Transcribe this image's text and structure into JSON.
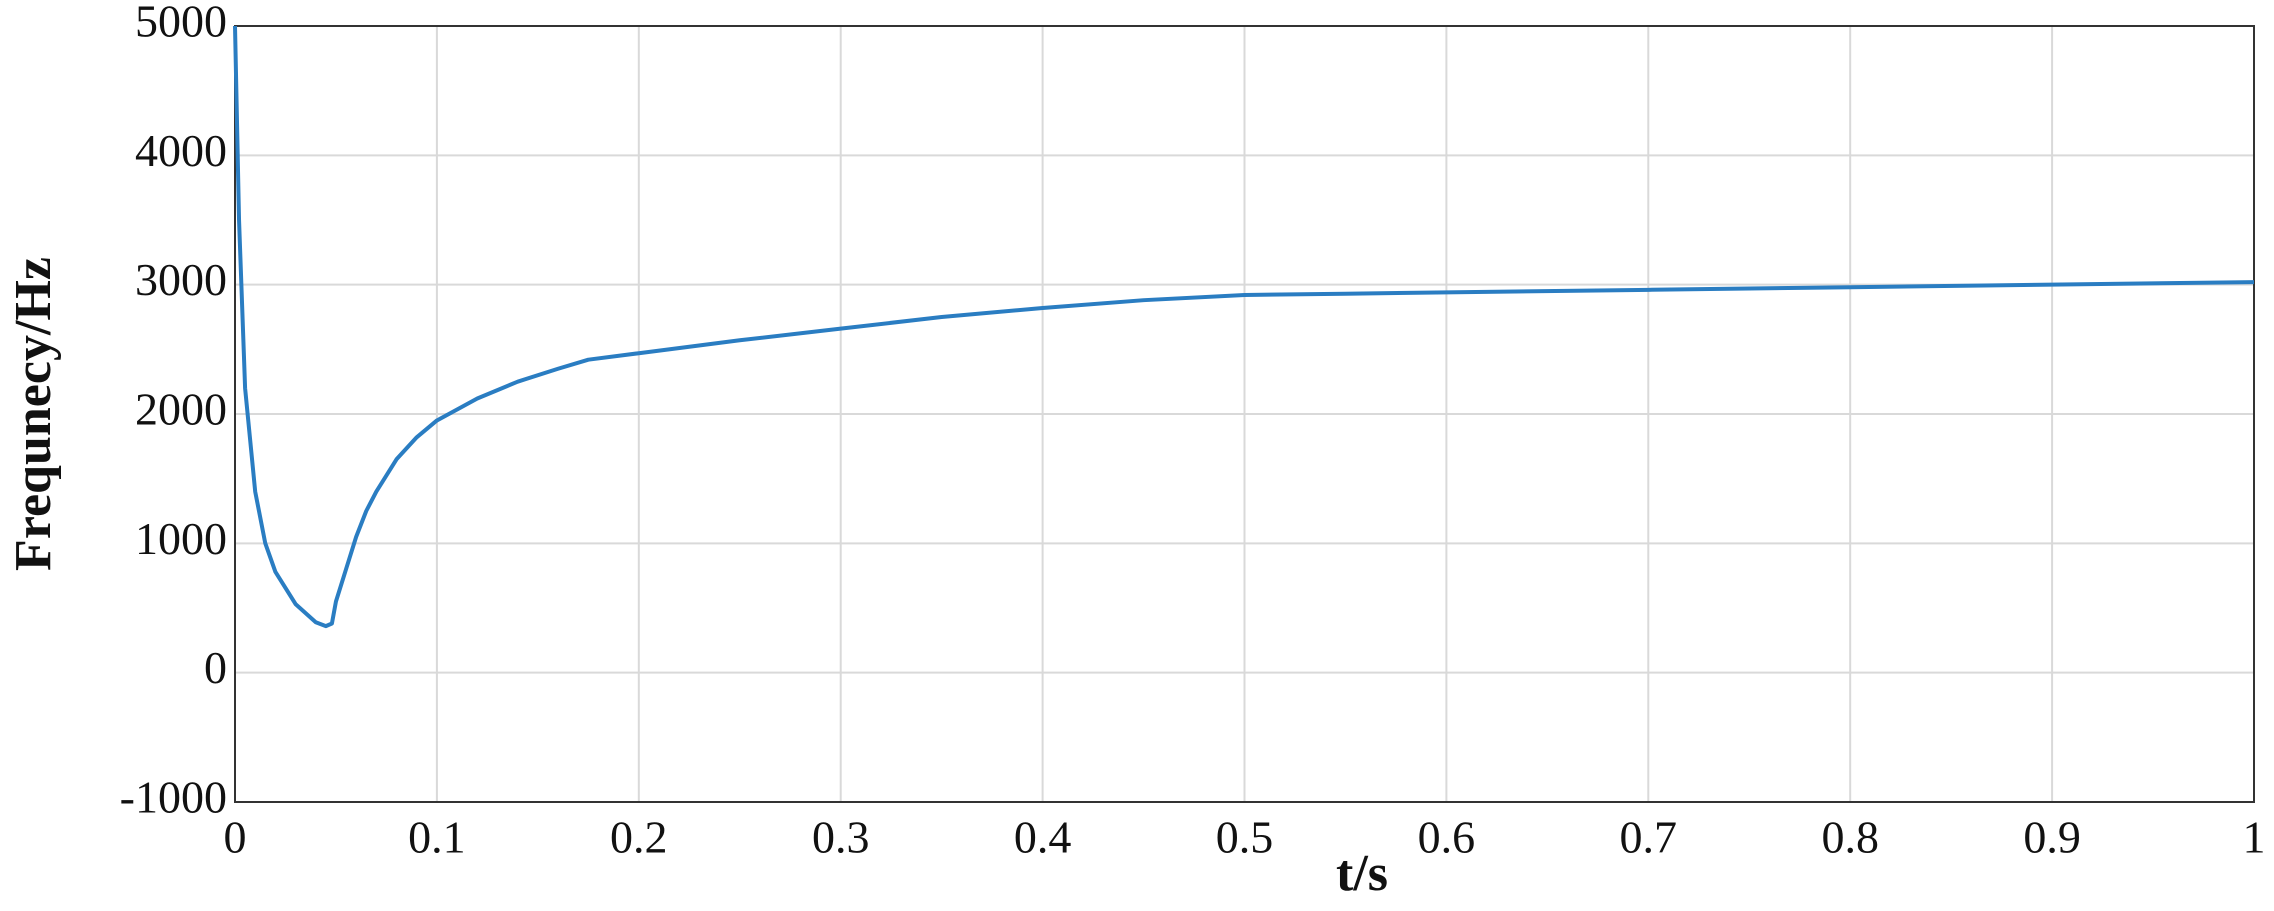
{
  "chart_data": {
    "type": "line",
    "x_label": "t/s",
    "y_label": "Frequnecy/Hz",
    "x": [
      0,
      0.002,
      0.005,
      0.01,
      0.015,
      0.02,
      0.03,
      0.04,
      0.045,
      0.048,
      0.05,
      0.055,
      0.06,
      0.065,
      0.07,
      0.08,
      0.09,
      0.1,
      0.12,
      0.14,
      0.16,
      0.175,
      0.2,
      0.25,
      0.3,
      0.35,
      0.4,
      0.45,
      0.5,
      0.55,
      0.6,
      0.7,
      0.8,
      0.9,
      1.0
    ],
    "series": [
      {
        "color": "#2a7dc2",
        "values": [
          5000,
          3500,
          2200,
          1400,
          1000,
          780,
          530,
          390,
          360,
          380,
          550,
          800,
          1050,
          1250,
          1400,
          1650,
          1820,
          1950,
          2120,
          2250,
          2350,
          2420,
          2470,
          2570,
          2660,
          2750,
          2820,
          2880,
          2920,
          2930,
          2940,
          2960,
          2980,
          3000,
          3020
        ]
      }
    ],
    "xlim": [
      0,
      1
    ],
    "xticks": [
      0,
      0.1,
      0.2,
      0.3,
      0.4,
      0.5,
      0.6,
      0.7,
      0.8,
      0.9,
      1
    ],
    "ylim": [
      -1000,
      5000
    ],
    "yticks": [
      -1000,
      0,
      1000,
      2000,
      3000,
      4000,
      5000
    ],
    "grid": true
  }
}
